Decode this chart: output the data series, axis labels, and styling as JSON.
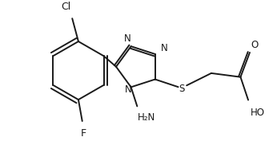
{
  "background_color": "#ffffff",
  "line_color": "#1a1a1a",
  "line_width": 1.4,
  "figsize": [
    3.41,
    1.77
  ],
  "dpi": 100,
  "xlim": [
    0,
    341
  ],
  "ylim": [
    0,
    177
  ]
}
